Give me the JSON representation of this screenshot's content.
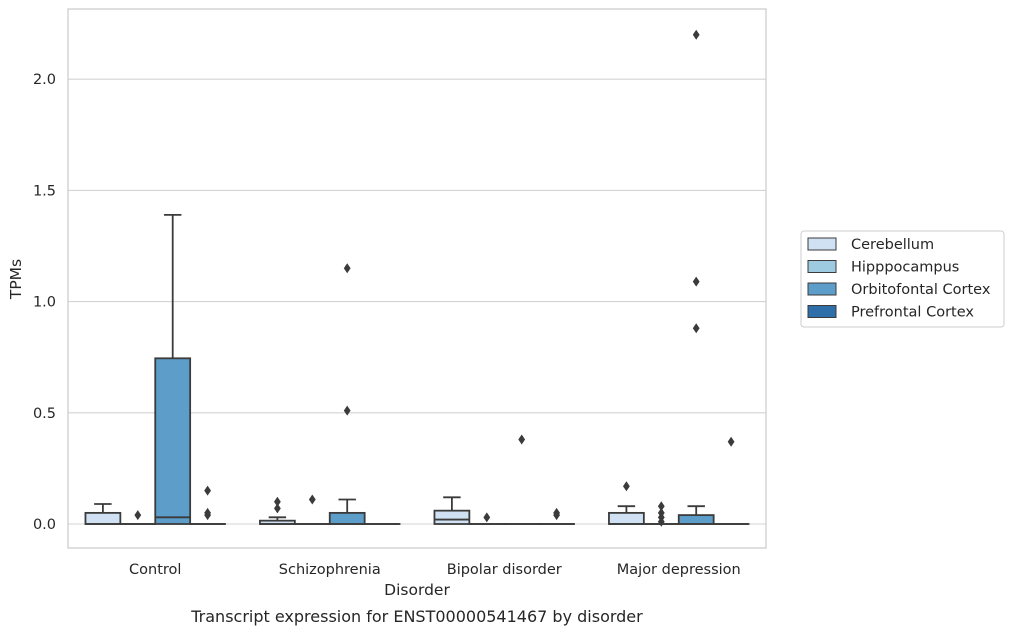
{
  "caption": "Transcript expression for ENST00000541467 by disorder",
  "chart_data": {
    "type": "box",
    "xlabel": "Disorder",
    "ylabel": "TPMs",
    "ylim": [
      -0.11,
      2.32
    ],
    "yticks": [
      "0.0",
      "0.5",
      "1.0",
      "1.5",
      "2.0"
    ],
    "grid": "horizontal",
    "legend_placement": "right",
    "categories": [
      "Control",
      "Schizophrenia",
      "Bipolar disorder",
      "Major depression"
    ],
    "series": [
      {
        "name": "Cerebellum",
        "color": "#cfe1f2",
        "boxes": [
          {
            "q1": 0.0,
            "median": 0.0,
            "q3": 0.05,
            "whisker_low": 0.0,
            "whisker_high": 0.09,
            "outliers": []
          },
          {
            "q1": 0.0,
            "median": 0.0,
            "q3": 0.015,
            "whisker_low": 0.0,
            "whisker_high": 0.03,
            "outliers": [
              0.07,
              0.1
            ]
          },
          {
            "q1": 0.0,
            "median": 0.02,
            "q3": 0.06,
            "whisker_low": 0.0,
            "whisker_high": 0.12,
            "outliers": []
          },
          {
            "q1": 0.0,
            "median": 0.0,
            "q3": 0.05,
            "whisker_low": 0.0,
            "whisker_high": 0.08,
            "outliers": [
              0.17
            ]
          }
        ]
      },
      {
        "name": "Hipppocampus",
        "color": "#9ecae1",
        "boxes": [
          {
            "q1": 0.0,
            "median": 0.0,
            "q3": 0.0,
            "whisker_low": 0.0,
            "whisker_high": 0.0,
            "outliers": [
              0.04
            ]
          },
          {
            "q1": 0.0,
            "median": 0.0,
            "q3": 0.0,
            "whisker_low": 0.0,
            "whisker_high": 0.0,
            "outliers": [
              0.11
            ]
          },
          {
            "q1": 0.0,
            "median": 0.0,
            "q3": 0.0,
            "whisker_low": 0.0,
            "whisker_high": 0.0,
            "outliers": [
              0.03
            ]
          },
          {
            "q1": 0.0,
            "median": 0.0,
            "q3": 0.0,
            "whisker_low": 0.0,
            "whisker_high": 0.0,
            "outliers": [
              0.01,
              0.03,
              0.05,
              0.08
            ]
          }
        ]
      },
      {
        "name": "Orbitofontal Cortex",
        "color": "#5d9dc9",
        "boxes": [
          {
            "q1": 0.0,
            "median": 0.03,
            "q3": 0.745,
            "whisker_low": 0.0,
            "whisker_high": 1.39,
            "outliers": []
          },
          {
            "q1": 0.0,
            "median": 0.0,
            "q3": 0.05,
            "whisker_low": 0.0,
            "whisker_high": 0.11,
            "outliers": [
              0.51,
              1.15
            ]
          },
          {
            "q1": 0.0,
            "median": 0.0,
            "q3": 0.0,
            "whisker_low": 0.0,
            "whisker_high": 0.0,
            "outliers": [
              0.38
            ]
          },
          {
            "q1": 0.0,
            "median": 0.0,
            "q3": 0.04,
            "whisker_low": 0.0,
            "whisker_high": 0.08,
            "outliers": [
              0.88,
              1.09,
              2.2
            ]
          }
        ]
      },
      {
        "name": "Prefrontal Cortex",
        "color": "#2e6ea9",
        "boxes": [
          {
            "q1": 0.0,
            "median": 0.0,
            "q3": 0.0,
            "whisker_low": 0.0,
            "whisker_high": 0.0,
            "outliers": [
              0.04,
              0.05,
              0.15
            ]
          },
          {
            "q1": 0.0,
            "median": 0.0,
            "q3": 0.0,
            "whisker_low": 0.0,
            "whisker_high": 0.0,
            "outliers": []
          },
          {
            "q1": 0.0,
            "median": 0.0,
            "q3": 0.0,
            "whisker_low": 0.0,
            "whisker_high": 0.0,
            "outliers": [
              0.04,
              0.05
            ]
          },
          {
            "q1": 0.0,
            "median": 0.0,
            "q3": 0.0,
            "whisker_low": 0.0,
            "whisker_high": 0.0,
            "outliers": [
              0.37
            ]
          }
        ]
      }
    ]
  }
}
